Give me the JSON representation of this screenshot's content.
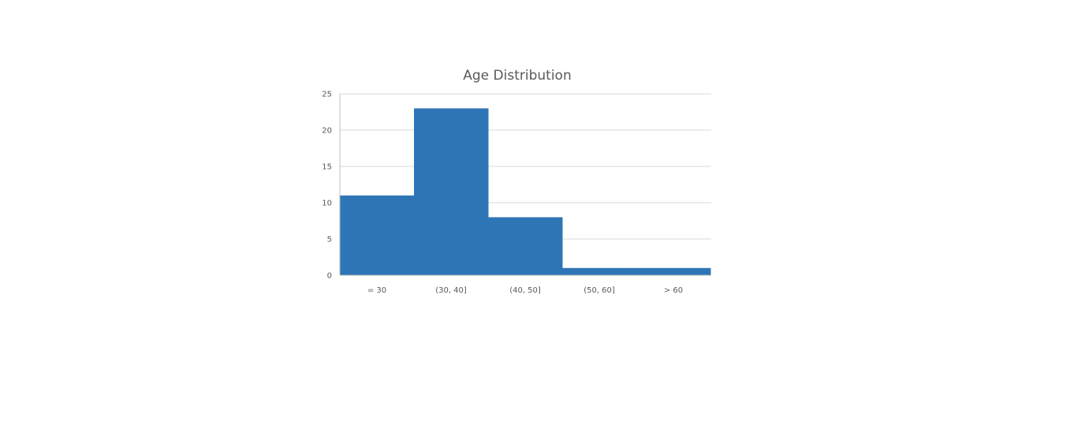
{
  "chart_data": {
    "type": "bar",
    "title": "Age Distribution",
    "xlabel": "",
    "ylabel": "",
    "categories": [
      "= 30",
      "(30, 40]",
      "(40, 50]",
      "(50, 60]",
      "> 60"
    ],
    "values": [
      11,
      23,
      8,
      1,
      1
    ],
    "ylim": [
      0,
      25
    ],
    "yticks": [
      "0",
      "5",
      "10",
      "15",
      "20",
      "25"
    ],
    "grid": true,
    "legend": "none",
    "bar_color": "#2E75B6"
  }
}
